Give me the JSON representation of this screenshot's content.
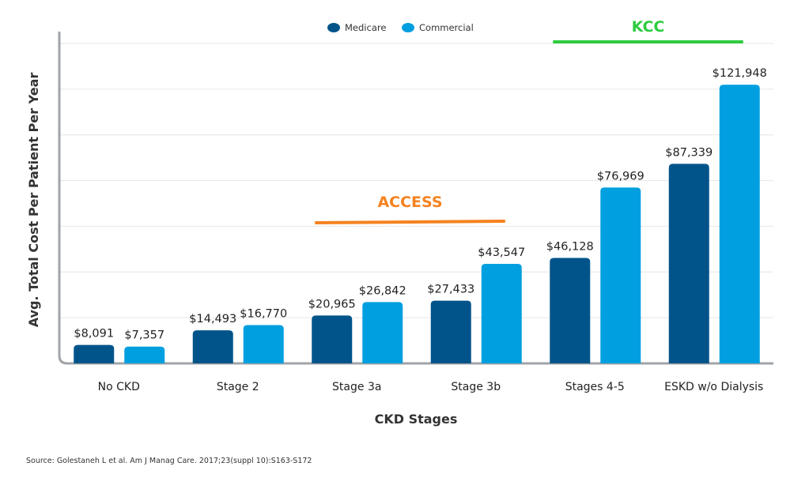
{
  "chart_data": {
    "type": "bar",
    "title": "",
    "xlabel": "CKD Stages",
    "ylabel": "Avg. Total Cost Per Patient Per Year",
    "ylim": [
      0,
      140000
    ],
    "grid": true,
    "legend_position": "top-center",
    "categories": [
      "No CKD",
      "Stage 2",
      "Stage 3a",
      "Stage 3b",
      "Stages 4-5",
      "ESKD w/o Dialysis"
    ],
    "series": [
      {
        "name": "Medicare",
        "color": "#00548a",
        "values": [
          8091,
          14493,
          20965,
          27433,
          46128,
          87339
        ],
        "labels": [
          "$8,091",
          "$14,493",
          "$20,965",
          "$27,433",
          "$46,128",
          "$87,339"
        ]
      },
      {
        "name": "Commercial",
        "color": "#009fdf",
        "values": [
          7357,
          16770,
          26842,
          43547,
          76969,
          121948
        ],
        "labels": [
          "$7,357",
          "$16,770",
          "$26,842",
          "$43,547",
          "$76,969",
          "$121,948"
        ]
      }
    ],
    "annotations": [
      {
        "text": "ACCESS",
        "color": "#f5821f",
        "span_categories": [
          "Stage 3a",
          "Stage 3b"
        ]
      },
      {
        "text": "KCC",
        "color": "#2ecc40",
        "span_categories": [
          "Stages 4-5",
          "ESKD w/o Dialysis"
        ]
      }
    ]
  },
  "source": "Source: Golestaneh L et al. Am J Manag Care. 2017;23(suppl 10):S163-S172"
}
